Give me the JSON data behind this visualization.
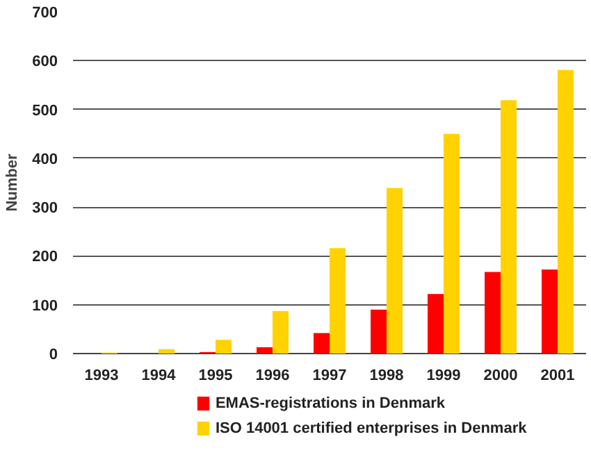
{
  "chart_data": {
    "type": "bar",
    "ylabel": "Number",
    "categories": [
      "1993",
      "1994",
      "1995",
      "1996",
      "1997",
      "1998",
      "1999",
      "2000",
      "2001"
    ],
    "series": [
      {
        "name": "EMAS-registrations in Denmark",
        "color": "#ff0000",
        "values": [
          0,
          0,
          3,
          13,
          42,
          90,
          122,
          167,
          172
        ]
      },
      {
        "name": "ISO 14001 certified enterprises in Denmark",
        "color": "#ffd200",
        "values": [
          2,
          9,
          28,
          87,
          216,
          339,
          450,
          519,
          581
        ]
      }
    ],
    "ylim": [
      0,
      700
    ],
    "yticks": [
      0,
      100,
      200,
      300,
      400,
      500,
      600,
      700
    ],
    "grid": "y",
    "legend": "bottom"
  }
}
